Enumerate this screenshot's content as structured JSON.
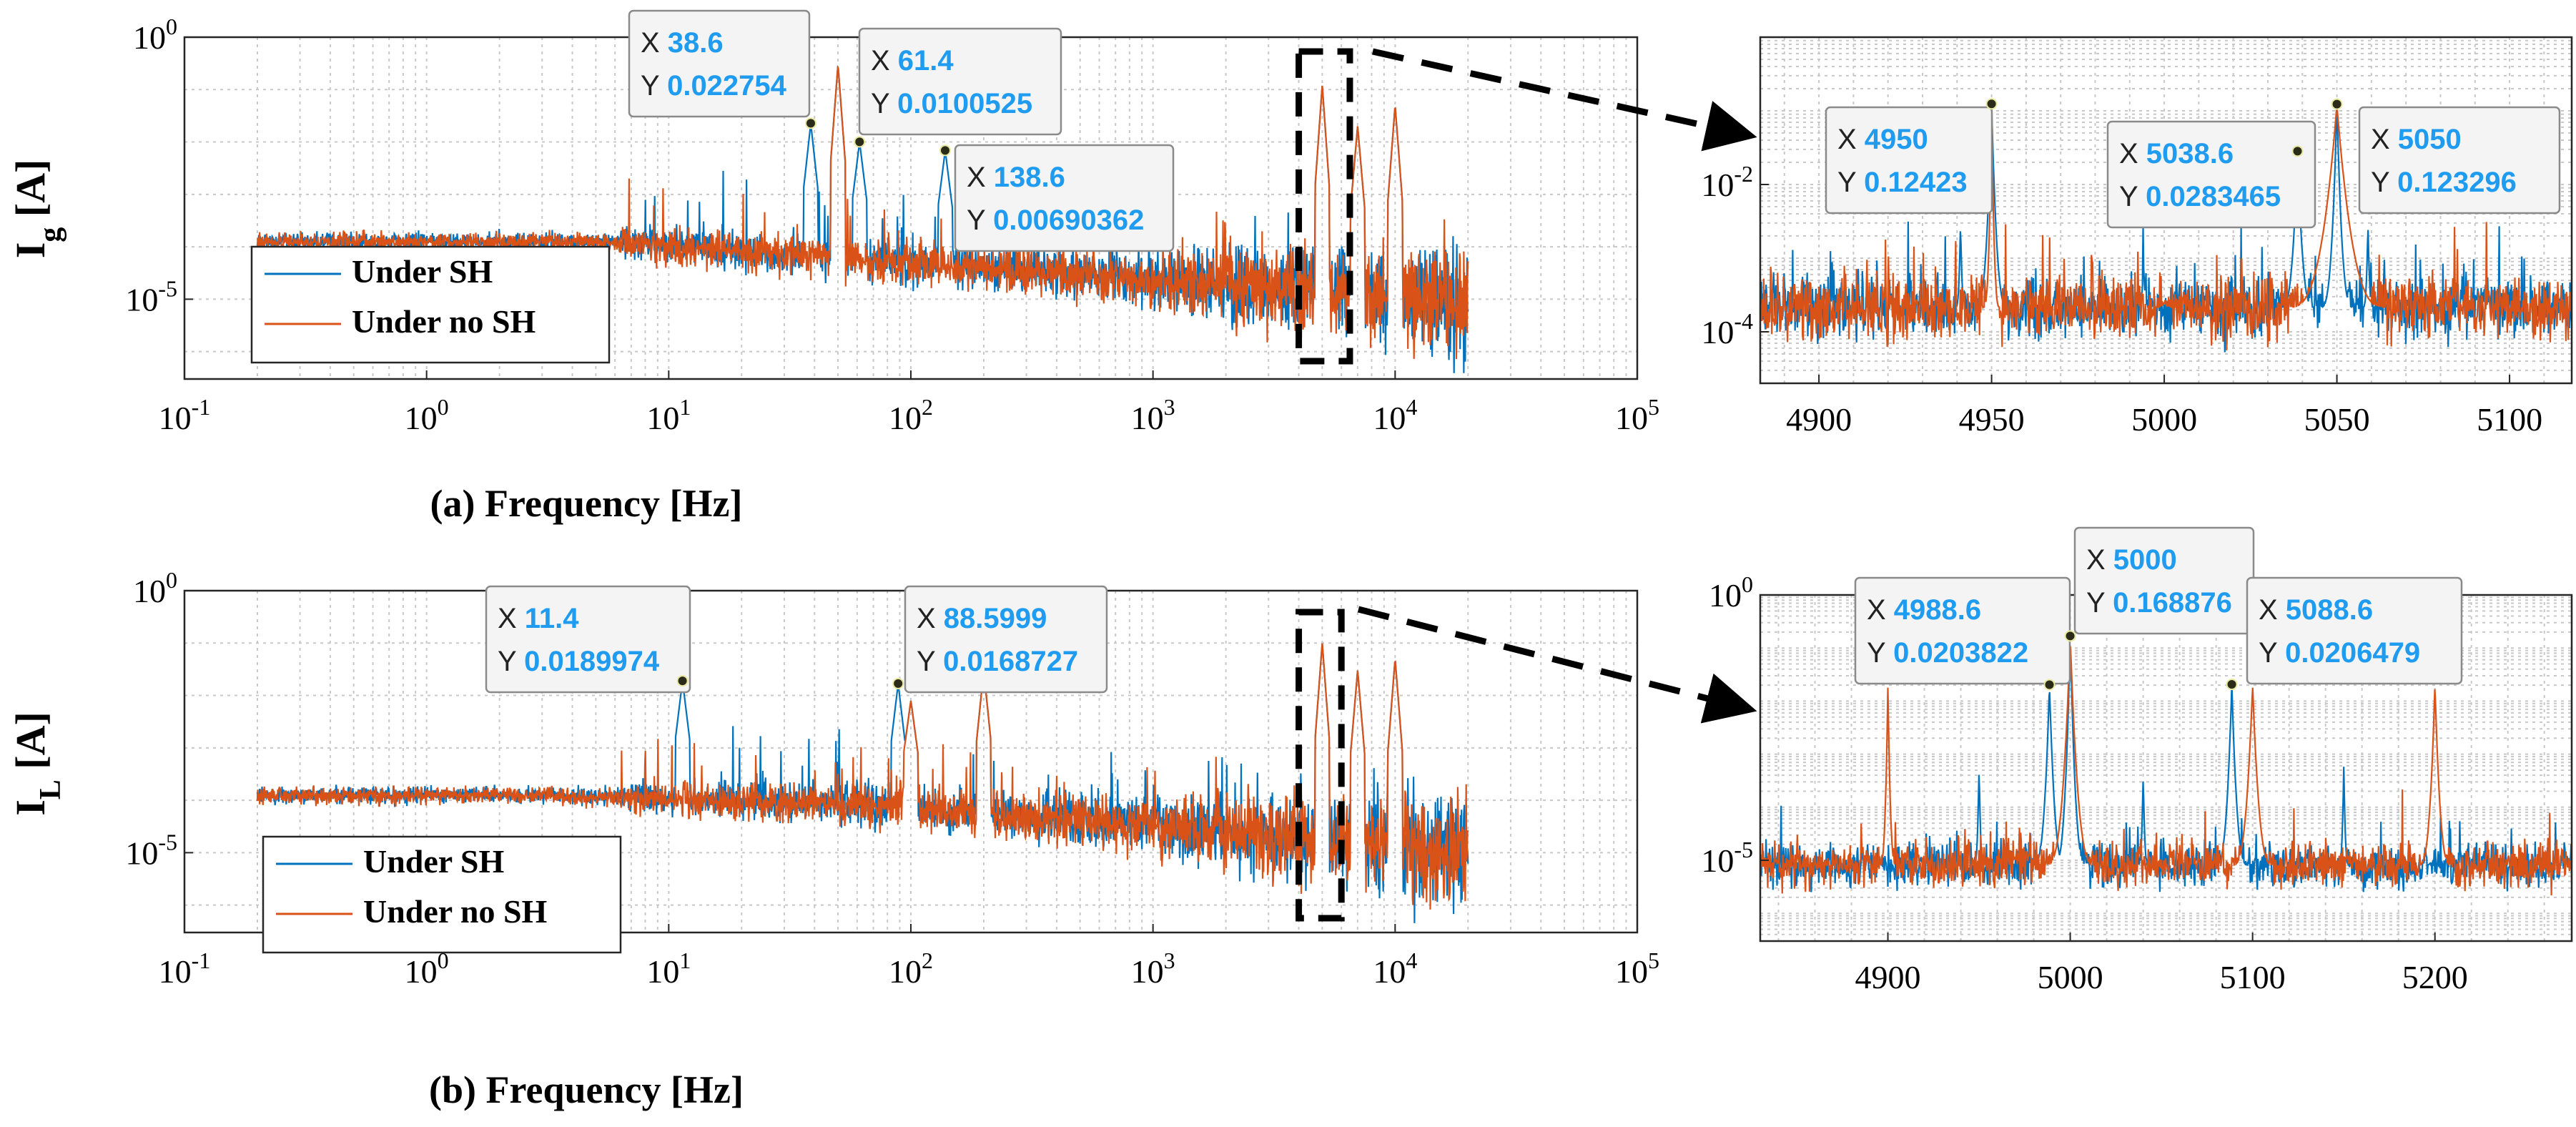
{
  "chart_data": [
    {
      "id": "a-main",
      "type": "line",
      "xscale": "log",
      "yscale": "log",
      "xlim": [
        0.1,
        100000
      ],
      "ylim": [
        3e-07,
        1
      ],
      "xticks": [
        0.1,
        1,
        10,
        100,
        1000,
        10000,
        100000
      ],
      "xtick_base": [
        "10",
        "10",
        "10",
        "10",
        "10",
        "10",
        "10"
      ],
      "xtick_exp": [
        "-1",
        "0",
        "1",
        "2",
        "3",
        "4",
        "5"
      ],
      "yticks": [
        1,
        1e-05
      ],
      "ytick_base": [
        "10",
        "10"
      ],
      "ytick_exp": [
        "0",
        "-5"
      ],
      "xlabel": "(a) Frequency [Hz]",
      "ylabel_main": "I",
      "ylabel_sub": "g",
      "ylabel_unit": " [A]",
      "legend": {
        "position": "bottom-left",
        "entries": [
          "Under SH",
          "Under no SH"
        ]
      },
      "series": [
        {
          "name": "Under SH",
          "color": "#0072bd"
        },
        {
          "name": "Under no SH",
          "color": "#d95319"
        }
      ],
      "peaks": [
        {
          "x": 38.6,
          "y": 0.022754
        },
        {
          "x": 61.4,
          "y": 0.0100525
        },
        {
          "x": 138.6,
          "y": 0.00690362
        }
      ],
      "datatips": [
        {
          "x_label": "X",
          "y_label": "Y",
          "x": "38.6",
          "y": "0.022754"
        },
        {
          "x_label": "X",
          "y_label": "Y",
          "x": "61.4",
          "y": "0.0100525"
        },
        {
          "x_label": "X",
          "y_label": "Y",
          "x": "138.6",
          "y": "0.00690362"
        }
      ],
      "zoom_region": [
        4000,
        6500
      ]
    },
    {
      "id": "a-zoom",
      "type": "line",
      "xscale": "linear",
      "yscale": "log",
      "xlim": [
        4883,
        5118
      ],
      "ylim": [
        2e-05,
        1
      ],
      "xticks": [
        4900,
        4950,
        5000,
        5050,
        5100
      ],
      "xtick_labels": [
        "4900",
        "4950",
        "5000",
        "5050",
        "5100"
      ],
      "yticks": [
        0.01,
        0.0001
      ],
      "ytick_base": [
        "10",
        "10"
      ],
      "ytick_exp": [
        "-2",
        "-4"
      ],
      "peaks": [
        {
          "x": 4950,
          "y": 0.12423
        },
        {
          "x": 5038.6,
          "y": 0.0283465
        },
        {
          "x": 5050,
          "y": 0.123296
        }
      ],
      "datatips": [
        {
          "x_label": "X",
          "y_label": "Y",
          "x": "4950",
          "y": "0.12423"
        },
        {
          "x_label": "X",
          "y_label": "Y",
          "x": "5038.6",
          "y": "0.0283465"
        },
        {
          "x_label": "X",
          "y_label": "Y",
          "x": "5050",
          "y": "0.123296"
        }
      ]
    },
    {
      "id": "b-main",
      "type": "line",
      "xscale": "log",
      "yscale": "log",
      "xlim": [
        0.1,
        100000
      ],
      "ylim": [
        3e-07,
        1
      ],
      "xticks": [
        0.1,
        1,
        10,
        100,
        1000,
        10000,
        100000
      ],
      "xtick_base": [
        "10",
        "10",
        "10",
        "10",
        "10",
        "10",
        "10"
      ],
      "xtick_exp": [
        "-1",
        "0",
        "1",
        "2",
        "3",
        "4",
        "5"
      ],
      "yticks": [
        1,
        1e-05
      ],
      "ytick_base": [
        "10",
        "10"
      ],
      "ytick_exp": [
        "0",
        "-5"
      ],
      "xlabel": "(b) Frequency [Hz]",
      "ylabel_main": "I",
      "ylabel_sub": "L",
      "ylabel_unit": " [A]",
      "legend": {
        "position": "bottom-left",
        "entries": [
          "Under SH",
          "Under no SH"
        ]
      },
      "series": [
        {
          "name": "Under SH",
          "color": "#0072bd"
        },
        {
          "name": "Under no SH",
          "color": "#d95319"
        }
      ],
      "peaks": [
        {
          "x": 11.4,
          "y": 0.0189974
        },
        {
          "x": 88.5999,
          "y": 0.0168727
        }
      ],
      "datatips": [
        {
          "x_label": "X",
          "y_label": "Y",
          "x": "11.4",
          "y": "0.0189974"
        },
        {
          "x_label": "X",
          "y_label": "Y",
          "x": "88.5999",
          "y": "0.0168727"
        }
      ],
      "zoom_region": [
        4000,
        6000
      ]
    },
    {
      "id": "b-zoom",
      "type": "line",
      "xscale": "linear",
      "yscale": "log",
      "xlim": [
        4830,
        5275
      ],
      "ylim": [
        3e-07,
        1
      ],
      "xticks": [
        4900,
        5000,
        5100,
        5200
      ],
      "xtick_labels": [
        "4900",
        "5000",
        "5100",
        "5200"
      ],
      "yticks": [
        1,
        1e-05
      ],
      "ytick_base": [
        "10",
        "10"
      ],
      "ytick_exp": [
        "0",
        "-5"
      ],
      "peaks": [
        {
          "x": 4988.6,
          "y": 0.0203822
        },
        {
          "x": 5000,
          "y": 0.168876
        },
        {
          "x": 5088.6,
          "y": 0.0206479
        }
      ],
      "datatips": [
        {
          "x_label": "X",
          "y_label": "Y",
          "x": "4988.6",
          "y": "0.0203822"
        },
        {
          "x_label": "X",
          "y_label": "Y",
          "x": "5000",
          "y": "0.168876"
        },
        {
          "x_label": "X",
          "y_label": "Y",
          "x": "5088.6",
          "y": "0.0206479"
        }
      ]
    }
  ]
}
